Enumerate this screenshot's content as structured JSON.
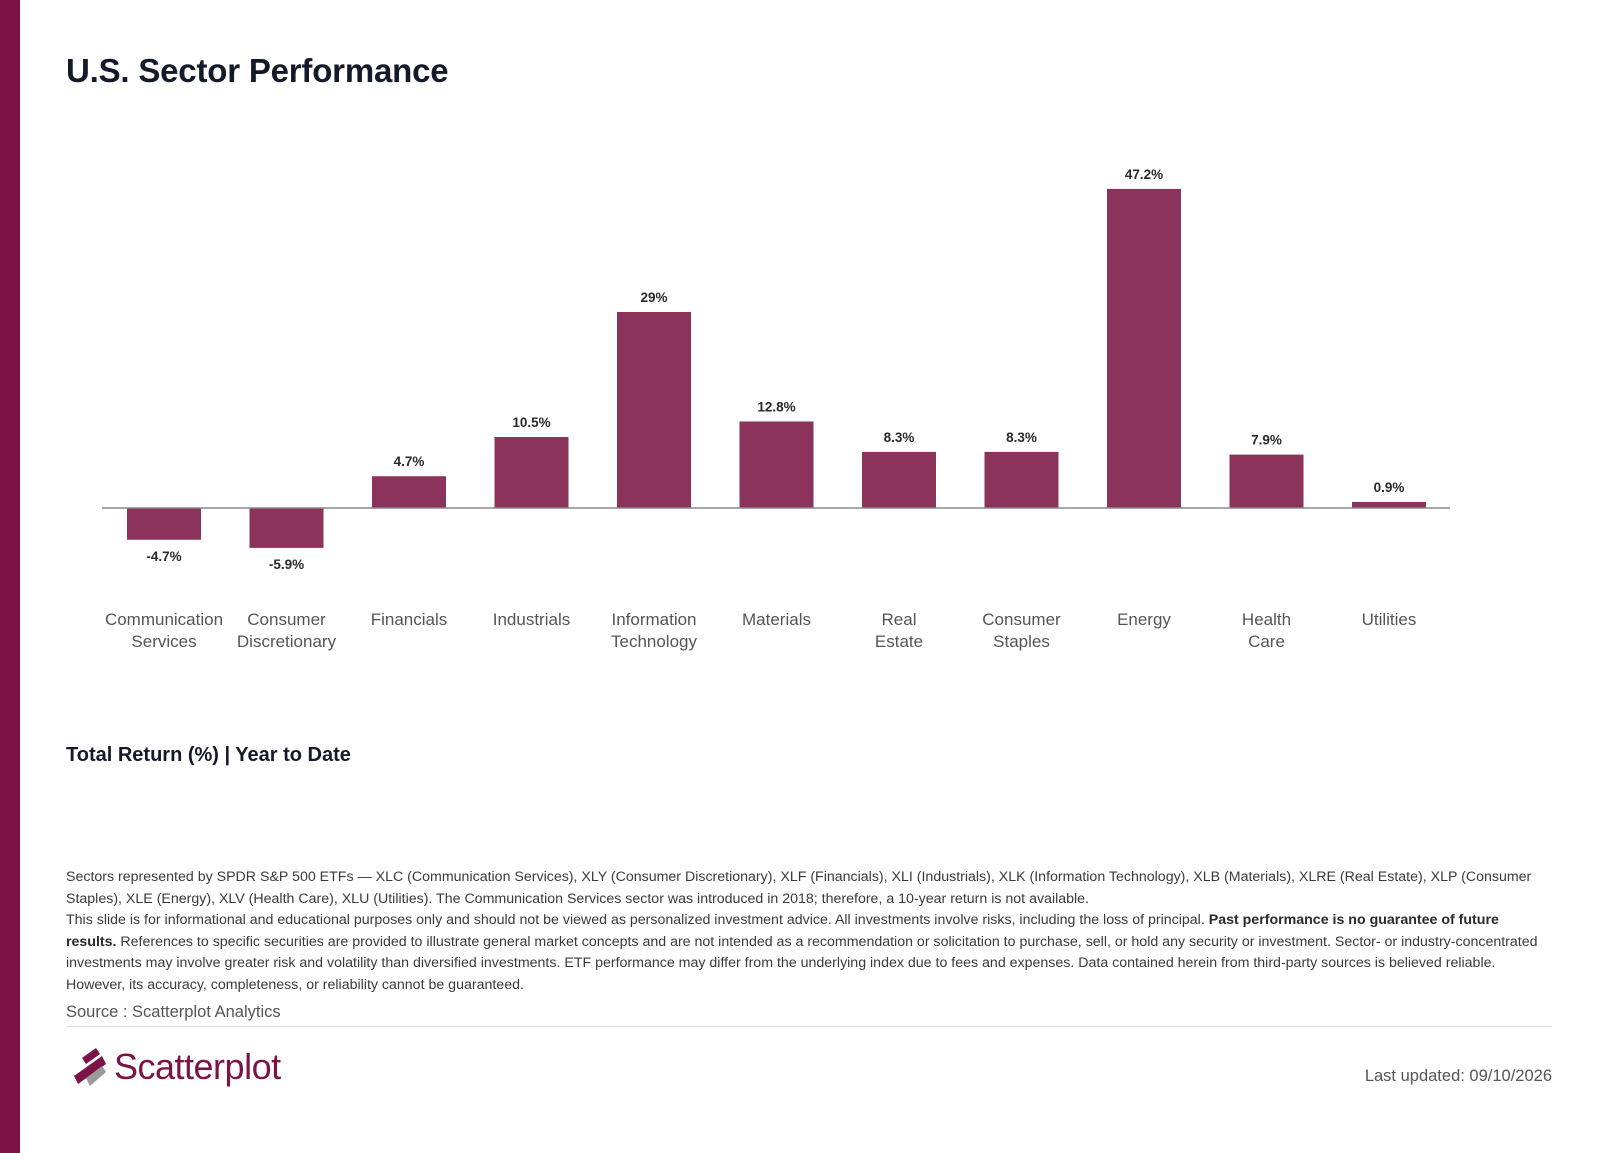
{
  "page": {
    "title": "U.S. Sector Performance",
    "subtitle": "Total Return (%) | Year to Date",
    "accent_color": "#7b1346",
    "bar_color": "#8b335b"
  },
  "notes": {
    "line1": "Sectors represented by SPDR S&P 500 ETFs — XLC (Communication Services), XLY (Consumer Discretionary), XLF (Financials), XLI (Industrials), XLK (Information Technology), XLB (Materials), XLRE (Real Estate), XLP (Consumer Staples), XLE (Energy), XLV (Health Care), XLU (Utilities). The Communication Services sector was introduced in 2018; therefore, a 10-year return is not available.",
    "line2_start": "This slide is for informational and educational purposes only and should not be viewed as personalized investment advice. All investments involve risks, including the loss of principal.",
    "line2_bold": "Past performance is no guarantee of future results.",
    "line2_end": "References to specific securities are provided to illustrate general market concepts and are not intended as a recommendation or solicitation to purchase, sell, or hold any security or investment. Sector- or industry-concentrated investments may involve greater risk and volatility than diversified investments. ETF performance may differ from the underlying index due to fees and expenses. Data contained herein from third-party sources is believed reliable. However, its accuracy, completeness, or reliability cannot be guaranteed."
  },
  "footer": {
    "source": "Source : Scatterplot Analytics",
    "logo_text": "Scatterplot",
    "last_updated": "Last updated: 09/10/2026"
  },
  "chart_data": {
    "type": "bar",
    "categories": [
      [
        "Communication",
        "Services"
      ],
      [
        "Consumer",
        "Discretionary"
      ],
      [
        "Financials"
      ],
      [
        "Industrials"
      ],
      [
        "Information",
        "Technology"
      ],
      [
        "Materials"
      ],
      [
        "Real",
        "Estate"
      ],
      [
        "Consumer",
        "Staples"
      ],
      [
        "Energy"
      ],
      [
        "Health",
        "Care"
      ],
      [
        "Utilities"
      ]
    ],
    "values": [
      -4.7,
      -5.9,
      4.7,
      10.5,
      29,
      12.8,
      8.3,
      8.3,
      47.2,
      7.9,
      0.9
    ],
    "data_labels": [
      "-4.7%",
      "-5.9%",
      "4.7%",
      "10.5%",
      "29%",
      "12.8%",
      "8.3%",
      "8.3%",
      "47.2%",
      "7.9%",
      "0.9%"
    ],
    "ylim": [
      -10,
      50
    ],
    "grid": false,
    "legend": "none"
  }
}
